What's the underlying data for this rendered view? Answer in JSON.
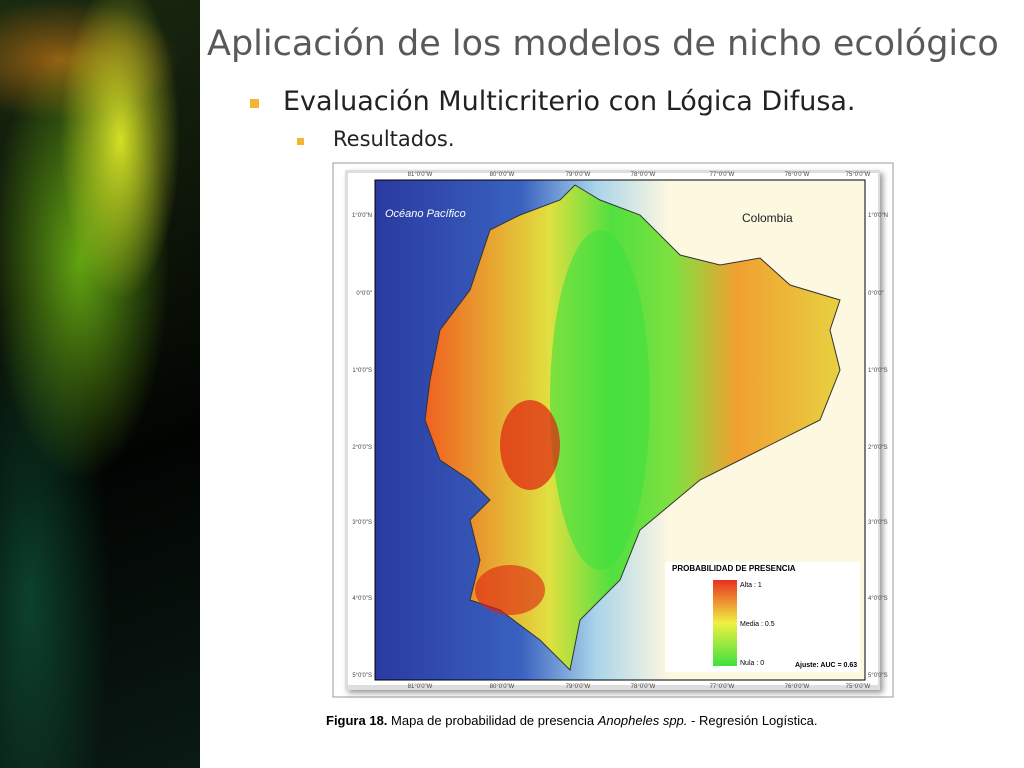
{
  "header": {
    "title": "Aplicación de los modelos de nicho ecológico"
  },
  "bullets": [
    "Evaluación Multicriterio con Lógica Difusa.",
    "Resultados."
  ],
  "map": {
    "ocean_label": "Océano Pacífico",
    "country_label": "Colombia",
    "lon_ticks": [
      "81°0'0\"W",
      "80°0'0\"W",
      "79°0'0\"W",
      "78°0'0\"W",
      "77°0'0\"W",
      "76°0'0\"W",
      "75°0'0\"W"
    ],
    "lat_ticks": [
      "1°0'0\"N",
      "0°0'0\"",
      "1°0'0\"S",
      "2°0'0\"S",
      "3°0'0\"S",
      "4°0'0\"S",
      "5°0'0\"S"
    ],
    "legend": {
      "title": "PROBABILIDAD DE PRESENCIA",
      "high": "Alta : 1",
      "mid": "Media : 0.5",
      "low": "Nula : 0",
      "fit": "Ajuste: AUC = 0.63"
    }
  },
  "caption": {
    "label": "Figura  18.",
    "text": "Mapa de probabilidad de presencia",
    "species": "Anopheles spp.",
    "method": "- Regresión Logística."
  }
}
